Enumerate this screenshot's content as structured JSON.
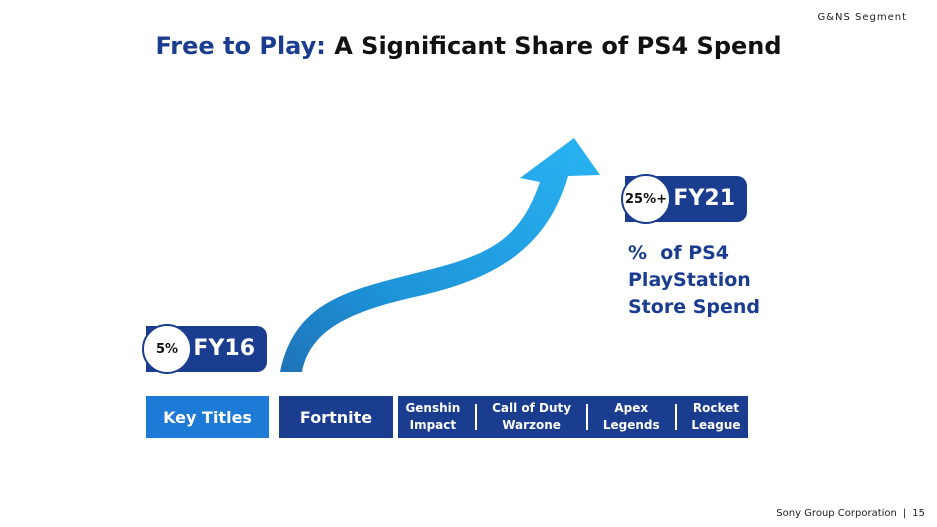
{
  "header": {
    "segment": "G&NS Segment"
  },
  "title": {
    "highlight": "Free to Play:",
    "rest": " A Significant Share of PS4 Spend"
  },
  "start": {
    "percent": "5%",
    "year": "FY16"
  },
  "end": {
    "percent": "25%+",
    "year": "FY21"
  },
  "metric": {
    "line1": "%  of PS4",
    "line2": "PlayStation",
    "line3": "Store Spend"
  },
  "key_titles": {
    "label": "Key Titles",
    "first": "Fortnite",
    "games": [
      {
        "line1": "Genshin",
        "line2": "Impact"
      },
      {
        "line1": "Call of Duty",
        "line2": "Warzone"
      },
      {
        "line1": "Apex",
        "line2": "Legends"
      },
      {
        "line1": "Rocket",
        "line2": "League"
      }
    ]
  },
  "footer": {
    "company": "Sony Group Corporation",
    "page": "15"
  },
  "colors": {
    "navy": "#1a3d8f",
    "blue": "#1d7ad6",
    "arrow_light": "#29b3f2",
    "arrow_dark": "#1f73b8"
  }
}
